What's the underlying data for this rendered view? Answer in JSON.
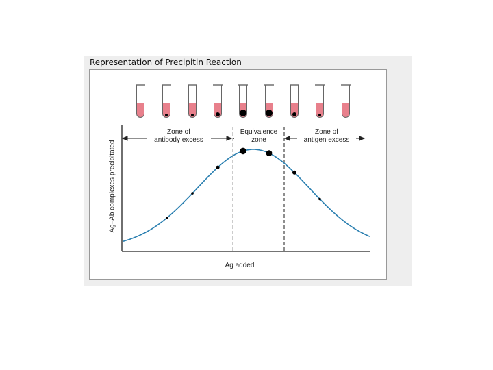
{
  "figure": {
    "title": "Representation of Precipitin Reaction",
    "y_axis_label": "Ag–Ab complexes precipitated",
    "x_axis_label": "Ag added"
  },
  "zones": [
    {
      "line1": "Zone of",
      "line2": "antibody excess"
    },
    {
      "line1": "Equivalence",
      "line2": "zone"
    },
    {
      "line1": "Zone of",
      "line2": "antigen excess"
    }
  ],
  "tubes": [
    {
      "index": 1,
      "precipitate": "none"
    },
    {
      "index": 2,
      "precipitate": "tiny"
    },
    {
      "index": 3,
      "precipitate": "tiny"
    },
    {
      "index": 4,
      "precipitate": "small"
    },
    {
      "index": 5,
      "precipitate": "large"
    },
    {
      "index": 6,
      "precipitate": "large"
    },
    {
      "index": 7,
      "precipitate": "small"
    },
    {
      "index": 8,
      "precipitate": "tiny"
    },
    {
      "index": 9,
      "precipitate": "none"
    }
  ],
  "colors": {
    "curve": "#2a7fb0",
    "tube_fluid": "#e8808c",
    "precipitate": "#000000",
    "zone_divider": "#888888",
    "panel_bg": "#eeeeee"
  }
}
